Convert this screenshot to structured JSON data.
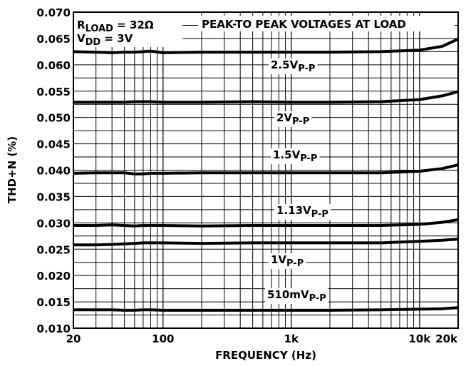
{
  "chart_data": {
    "type": "line",
    "annotations": [
      [
        {
          "text": "R"
        },
        {
          "sub": "LOAD"
        },
        {
          "text": " = 32Ω"
        }
      ],
      [
        {
          "text": "V"
        },
        {
          "sub": "DD"
        },
        {
          "text": " = 3V"
        }
      ],
      [
        {
          "text": "PEAK-TO PEAK VOLTAGES AT LOAD"
        }
      ]
    ],
    "xlabel": "FREQUENCY (Hz)",
    "ylabel": "THD+N (%)",
    "x": [
      20,
      30,
      40,
      50,
      60,
      70,
      80,
      100,
      200,
      500,
      1000,
      2000,
      5000,
      10000,
      15000,
      20000
    ],
    "series": [
      {
        "name": "2.5V",
        "name_sub": "P-P",
        "color": "#000000",
        "values": [
          0.0625,
          0.0624,
          0.0623,
          0.0624,
          0.0624,
          0.0625,
          0.0626,
          0.0623,
          0.0624,
          0.0624,
          0.0624,
          0.0624,
          0.0625,
          0.0628,
          0.0635,
          0.0649
        ]
      },
      {
        "name": "2V",
        "name_sub": "P-P",
        "color": "#000000",
        "values": [
          0.0529,
          0.0529,
          0.0529,
          0.0529,
          0.053,
          0.053,
          0.053,
          0.0529,
          0.0529,
          0.053,
          0.0529,
          0.0529,
          0.053,
          0.0534,
          0.0541,
          0.0549
        ]
      },
      {
        "name": "1.5V",
        "name_sub": "P-P",
        "color": "#000000",
        "values": [
          0.0394,
          0.0395,
          0.0395,
          0.0395,
          0.0393,
          0.0393,
          0.0394,
          0.0394,
          0.0395,
          0.0395,
          0.0395,
          0.0395,
          0.0395,
          0.0398,
          0.0403,
          0.041
        ]
      },
      {
        "name": "1.13V",
        "name_sub": "P-P",
        "color": "#000000",
        "values": [
          0.0295,
          0.0295,
          0.0296,
          0.0295,
          0.0294,
          0.0295,
          0.0295,
          0.0295,
          0.0294,
          0.0295,
          0.0295,
          0.0295,
          0.0295,
          0.0297,
          0.0301,
          0.0306
        ]
      },
      {
        "name": "1V",
        "name_sub": "P-P",
        "color": "#000000",
        "values": [
          0.0258,
          0.0258,
          0.0259,
          0.026,
          0.0261,
          0.0262,
          0.0262,
          0.0262,
          0.0261,
          0.0262,
          0.0262,
          0.0262,
          0.0262,
          0.0265,
          0.0267,
          0.0269
        ]
      },
      {
        "name": "510mV",
        "name_sub": "P-P",
        "color": "#000000",
        "values": [
          0.0135,
          0.0135,
          0.0135,
          0.0134,
          0.0134,
          0.0135,
          0.0135,
          0.0134,
          0.0134,
          0.0134,
          0.0134,
          0.0134,
          0.0135,
          0.0136,
          0.0137,
          0.0139
        ]
      }
    ],
    "xscale": "log",
    "xlim": [
      20,
      20000
    ],
    "xticks": [
      20,
      100,
      {
        "value": 1000,
        "label": "1k"
      },
      {
        "value": 10000,
        "label": "10k"
      },
      {
        "value": 20000,
        "label": "20k"
      }
    ],
    "ylim": [
      0.01,
      0.07
    ],
    "yticks": [
      {
        "value": 0.01,
        "label": "0.010"
      },
      {
        "value": 0.015,
        "label": "0.015"
      },
      {
        "value": 0.02,
        "label": "0.020"
      },
      {
        "value": 0.025,
        "label": "0.025"
      },
      {
        "value": 0.03,
        "label": "0.030"
      },
      {
        "value": 0.035,
        "label": "0.035"
      },
      {
        "value": 0.04,
        "label": "0.040"
      },
      {
        "value": 0.045,
        "label": "0.045"
      },
      {
        "value": 0.05,
        "label": "0.050"
      },
      {
        "value": 0.055,
        "label": "0.055"
      },
      {
        "value": 0.06,
        "label": "0.060"
      },
      {
        "value": 0.065,
        "label": "0.065"
      },
      {
        "value": 0.07,
        "label": "0.070"
      }
    ],
    "grid": true
  }
}
